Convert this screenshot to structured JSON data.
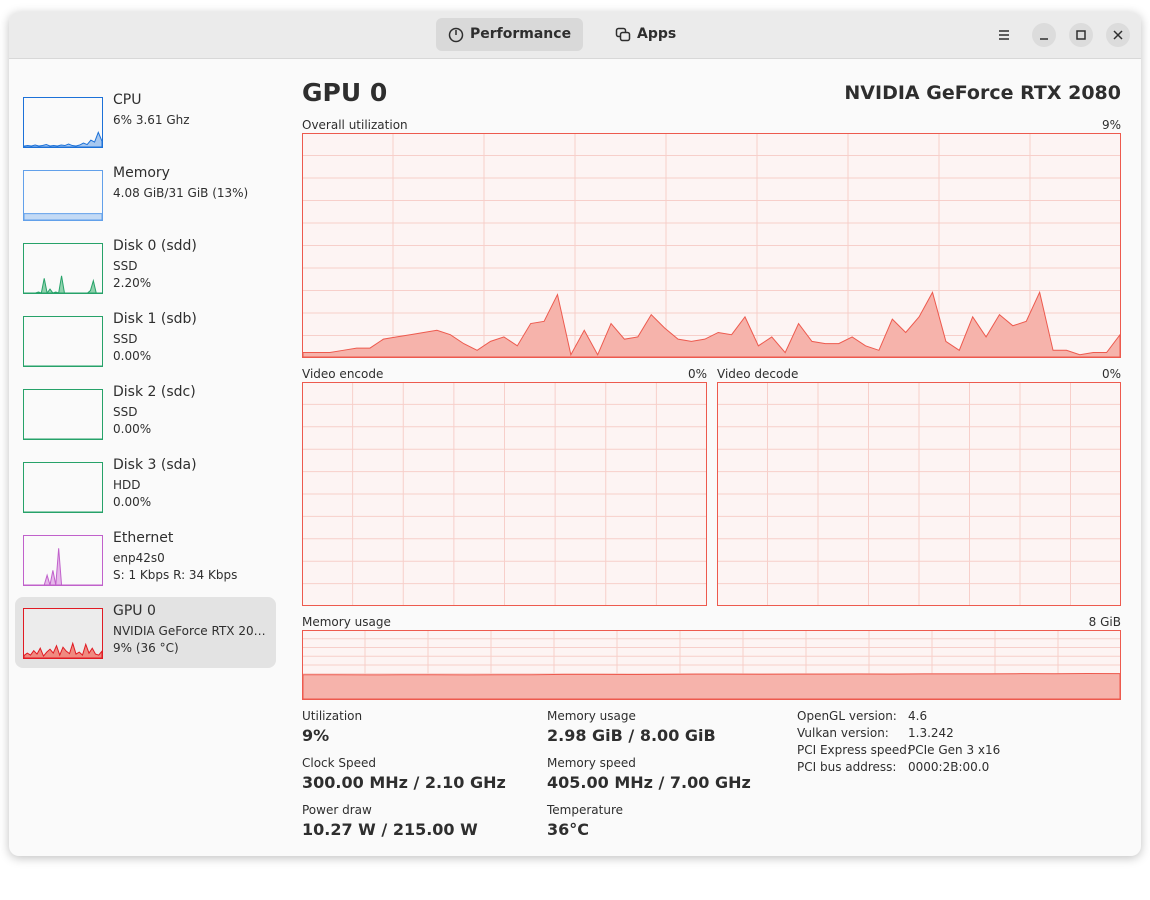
{
  "header": {
    "tabs": [
      "Performance",
      "Apps"
    ]
  },
  "sidebar": {
    "items": [
      {
        "name": "CPU",
        "lines": [
          "6% 3.61 Ghz"
        ],
        "color": "#1c71d8",
        "fill": "#a7c8f0",
        "ylim": [
          0,
          100
        ],
        "graph": [
          2,
          3,
          2,
          4,
          2,
          3,
          5,
          2,
          3,
          2,
          4,
          3,
          6,
          3,
          2,
          4,
          8,
          5,
          14,
          10,
          30,
          12
        ]
      },
      {
        "name": "Memory",
        "lines": [
          "4.08 GiB/31 GiB (13%)"
        ],
        "color": "#62a0ea",
        "fill": "#c3daf5",
        "ylim": [
          0,
          100
        ],
        "graph": [
          13,
          13,
          13,
          13,
          13,
          13,
          13,
          13,
          13,
          13,
          13,
          13
        ]
      },
      {
        "name": "Disk 0 (sdd)",
        "lines": [
          "SSD",
          "2.20%"
        ],
        "color": "#26a269",
        "fill": "#8fd2ad",
        "ylim": [
          0,
          100
        ],
        "graph": [
          0,
          0,
          0,
          0,
          0,
          2,
          0,
          30,
          0,
          8,
          0,
          2,
          0,
          35,
          0,
          0,
          0,
          0,
          0,
          0,
          0,
          0,
          0,
          5,
          25,
          0,
          0,
          0
        ]
      },
      {
        "name": "Disk 1 (sdb)",
        "lines": [
          "SSD",
          "0.00%"
        ],
        "color": "#26a269",
        "fill": "#8fd2ad",
        "ylim": [
          0,
          100
        ],
        "graph": [
          0,
          0,
          0,
          0,
          0,
          0
        ]
      },
      {
        "name": "Disk 2 (sdc)",
        "lines": [
          "SSD",
          "0.00%"
        ],
        "color": "#26a269",
        "fill": "#8fd2ad",
        "ylim": [
          0,
          100
        ],
        "graph": [
          0,
          0,
          0,
          0,
          0,
          0
        ]
      },
      {
        "name": "Disk 3 (sda)",
        "lines": [
          "HDD",
          "0.00%"
        ],
        "color": "#26a269",
        "fill": "#8fd2ad",
        "ylim": [
          0,
          100
        ],
        "graph": [
          0,
          0,
          0,
          0,
          0,
          0
        ]
      },
      {
        "name": "Ethernet",
        "lines": [
          "enp42s0",
          "S: 1 Kbps R: 34 Kbps"
        ],
        "color": "#c061cb",
        "fill": "#e6b8ea",
        "ylim": [
          0,
          100
        ],
        "graph": [
          0,
          0,
          0,
          0,
          0,
          0,
          0,
          0,
          20,
          0,
          30,
          0,
          75,
          0,
          0,
          0,
          0,
          0,
          0,
          0,
          0,
          0,
          0,
          0,
          0,
          0,
          0,
          0
        ]
      },
      {
        "name": "GPU 0",
        "lines": [
          "NVIDIA GeForce RTX 20…",
          "9% (36 °C)"
        ],
        "color": "#e01b24",
        "fill": "#f08a80",
        "ylim": [
          0,
          100
        ],
        "graph": [
          5,
          10,
          6,
          15,
          8,
          20,
          4,
          12,
          18,
          10,
          25,
          6,
          22,
          14,
          9,
          30,
          8,
          12,
          6,
          28,
          10,
          20,
          8,
          6,
          14
        ]
      }
    ],
    "selected": 7
  },
  "detail": {
    "title": "GPU 0",
    "device": "NVIDIA GeForce RTX 2080",
    "overall": {
      "label": "Overall utilization",
      "value_label": "9%",
      "ylim": [
        0,
        100
      ],
      "values": [
        2,
        2,
        2,
        3,
        4,
        4,
        8,
        9,
        10,
        11,
        12,
        10,
        6,
        3,
        7,
        9,
        5,
        15,
        16,
        28,
        1,
        12,
        1,
        15,
        8,
        9,
        19,
        13,
        8,
        7,
        8,
        11,
        10,
        18,
        5,
        9,
        2,
        15,
        7,
        6,
        6,
        9,
        5,
        3,
        17,
        11,
        18,
        29,
        7,
        3,
        18,
        9,
        19,
        14,
        16,
        29,
        3,
        3,
        1,
        2,
        2,
        10
      ]
    },
    "encode": {
      "label": "Video encode",
      "value_label": "0%"
    },
    "decode": {
      "label": "Video decode",
      "value_label": "0%"
    },
    "memory": {
      "label": "Memory usage",
      "value_label": "8 GiB",
      "ylim": [
        0,
        8
      ],
      "values": [
        2.85,
        2.85,
        2.84,
        2.85,
        2.85,
        2.84,
        2.85,
        2.85,
        2.9,
        2.9,
        2.88,
        2.9,
        2.92,
        2.92,
        2.91,
        2.92,
        2.93,
        2.94,
        2.93,
        2.95,
        2.96,
        2.96,
        2.98,
        2.97,
        3.0,
        2.98
      ]
    },
    "stats": [
      [
        {
          "label": "Utilization",
          "value": "9%"
        },
        {
          "label": "Clock Speed",
          "value": "300.00 MHz / 2.10 GHz"
        },
        {
          "label": "Power draw",
          "value": "10.27 W / 215.00 W"
        }
      ],
      [
        {
          "label": "Memory usage",
          "value": "2.98 GiB / 8.00 GiB"
        },
        {
          "label": "Memory speed",
          "value": "405.00 MHz / 7.00 GHz"
        },
        {
          "label": "Temperature",
          "value": "36°C"
        }
      ]
    ],
    "info": [
      [
        "OpenGL version:",
        "4.6"
      ],
      [
        "Vulkan version:",
        "1.3.242"
      ],
      [
        "PCI Express speed:",
        "PCIe Gen 3 x16"
      ],
      [
        "PCI bus address:",
        "0000:2B:00.0"
      ]
    ]
  }
}
